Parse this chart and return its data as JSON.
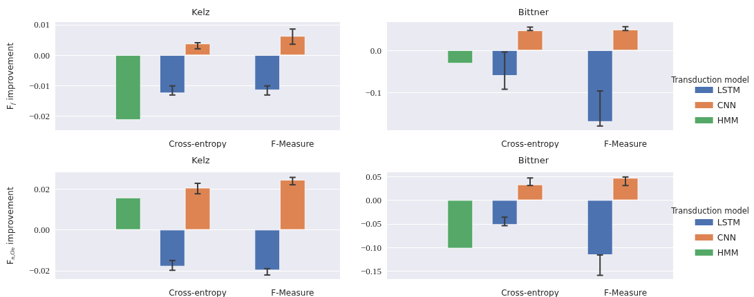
{
  "chart_data": [
    {
      "type": "bar",
      "title": "Kelz",
      "ylabel": "F$_{f}$ improvement",
      "categories": [
        null,
        "Cross-entropy",
        "F-Measure"
      ],
      "ylim": [
        -0.0247,
        0.0109
      ],
      "yticks": [
        {
          "value": -0.02,
          "label": "−0.02"
        },
        {
          "value": -0.01,
          "label": "−0.01"
        },
        {
          "value": 0,
          "label": "0.00"
        },
        {
          "value": 0.01,
          "label": "0.01"
        }
      ],
      "grid": "y",
      "legend": false,
      "series": [
        {
          "color": "#4c72b0",
          "values": [
            null,
            -0.0125,
            -0.0115
          ],
          "errors": [
            null,
            [
              -0.0131,
              -0.0101
            ],
            [
              -0.0131,
              -0.0101
            ]
          ]
        },
        {
          "color": "#dd8452",
          "values": [
            null,
            0.0038,
            0.0063
          ],
          "errors": [
            null,
            [
              0.0021,
              0.0041
            ],
            [
              0.0036,
              0.0086
            ]
          ]
        },
        {
          "color": "#55a868",
          "values": [
            -0.0213,
            null,
            null
          ]
        }
      ]
    },
    {
      "type": "bar",
      "title": "Bittner",
      "categories": [
        null,
        "Cross-entropy",
        "F-Measure"
      ],
      "ylim": [
        -0.189,
        0.067
      ],
      "yticks": [
        {
          "value": -0.1,
          "label": "−0.1"
        },
        {
          "value": 0,
          "label": "0.0"
        }
      ],
      "grid": "y",
      "legend": "right",
      "legend_title": "Transduction model",
      "series": [
        {
          "name": "LSTM",
          "color": "#4c72b0",
          "values": [
            null,
            -0.06,
            -0.169
          ],
          "errors": [
            null,
            [
              -0.092,
              -0.004
            ],
            [
              -0.179,
              -0.096
            ]
          ]
        },
        {
          "name": "CNN",
          "color": "#dd8452",
          "values": [
            null,
            0.047,
            0.049
          ],
          "errors": [
            null,
            [
              0.047,
              0.055
            ],
            [
              0.047,
              0.056
            ]
          ]
        },
        {
          "name": "HMM",
          "color": "#55a868",
          "values": [
            -0.031,
            null,
            null
          ]
        }
      ]
    },
    {
      "type": "bar",
      "title": "Kelz",
      "ylabel": "F$_{n,On}$ improvement",
      "categories": [
        null,
        "Cross-entropy",
        "F-Measure"
      ],
      "ylim": [
        -0.0241,
        0.0281
      ],
      "yticks": [
        {
          "value": -0.02,
          "label": "−0.02"
        },
        {
          "value": 0,
          "label": "0.00"
        },
        {
          "value": 0.02,
          "label": "0.02"
        }
      ],
      "grid": "y",
      "legend": false,
      "series": [
        {
          "color": "#4c72b0",
          "values": [
            null,
            -0.0179,
            -0.0198
          ],
          "errors": [
            null,
            [
              -0.0198,
              -0.015
            ],
            [
              -0.0221,
              -0.019
            ]
          ]
        },
        {
          "color": "#dd8452",
          "values": [
            null,
            0.0205,
            0.0244
          ],
          "errors": [
            null,
            [
              0.0176,
              0.0227
            ],
            [
              0.022,
              0.0256
            ]
          ]
        },
        {
          "color": "#55a868",
          "values": [
            0.0157,
            null,
            null
          ]
        }
      ]
    },
    {
      "type": "bar",
      "title": "Bittner",
      "categories": [
        null,
        "Cross-entropy",
        "F-Measure"
      ],
      "ylim": [
        -0.167,
        0.059
      ],
      "yticks": [
        {
          "value": -0.15,
          "label": "−0.15"
        },
        {
          "value": -0.1,
          "label": "−0.10"
        },
        {
          "value": -0.05,
          "label": "−0.05"
        },
        {
          "value": 0,
          "label": "0.00"
        },
        {
          "value": 0.05,
          "label": "0.05"
        }
      ],
      "grid": "y",
      "legend": "right",
      "legend_title": "Transduction model",
      "series": [
        {
          "name": "LSTM",
          "color": "#4c72b0",
          "values": [
            null,
            -0.052,
            -0.116
          ],
          "errors": [
            null,
            [
              -0.054,
              -0.036
            ],
            [
              -0.159,
              -0.116
            ]
          ]
        },
        {
          "name": "CNN",
          "color": "#dd8452",
          "values": [
            null,
            0.033,
            0.047
          ],
          "errors": [
            null,
            [
              0.031,
              0.047
            ],
            [
              0.031,
              0.049
            ]
          ]
        },
        {
          "name": "HMM",
          "color": "#55a868",
          "values": [
            -0.102,
            null,
            null
          ]
        }
      ]
    }
  ]
}
